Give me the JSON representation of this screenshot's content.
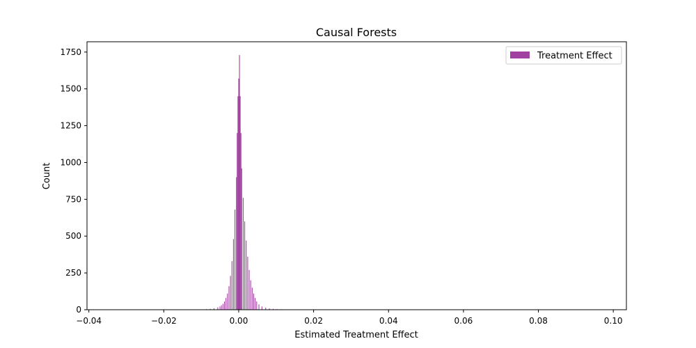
{
  "chart_data": {
    "type": "bar",
    "title": "Causal Forests",
    "xlabel": "Estimated Treatment Effect",
    "ylabel": "Count",
    "xlim": [
      -0.0405,
      0.1035
    ],
    "ylim": [
      0,
      1820
    ],
    "x_ticks": [
      -0.04,
      -0.02,
      0.0,
      0.02,
      0.04,
      0.06,
      0.08,
      0.1
    ],
    "x_tick_labels": [
      "−0.04",
      "−0.02",
      "0.00",
      "0.02",
      "0.04",
      "0.06",
      "0.08",
      "0.10"
    ],
    "y_ticks": [
      0,
      250,
      500,
      750,
      1000,
      1250,
      1500,
      1750
    ],
    "y_tick_labels": [
      "0",
      "250",
      "500",
      "750",
      "1000",
      "1250",
      "1500",
      "1750"
    ],
    "grid": false,
    "legend_position": "top-right",
    "bar_color": "#800080",
    "bin_width": 0.0002,
    "series": [
      {
        "name": "Treatment Effect",
        "bin_starts": [
          -0.0107,
          -0.0087,
          -0.0077,
          -0.0067,
          -0.0057,
          -0.0051,
          -0.0047,
          -0.0043,
          -0.0039,
          -0.0035,
          -0.0031,
          -0.0027,
          -0.0023,
          -0.0019,
          -0.0015,
          -0.0011,
          -0.0007,
          -0.0005,
          -0.0003,
          -0.0001,
          0.0001,
          0.0003,
          0.0005,
          0.0007,
          0.0011,
          0.0015,
          0.0019,
          0.0023,
          0.0027,
          0.0031,
          0.0035,
          0.0039,
          0.0043,
          0.0047,
          0.0053,
          0.0061,
          0.0071,
          0.0081,
          0.0091,
          0.0101,
          0.0111,
          0.0125,
          0.0145,
          0.0165
        ],
        "counts": [
          2,
          4,
          6,
          10,
          16,
          22,
          30,
          40,
          56,
          80,
          110,
          160,
          230,
          330,
          480,
          680,
          900,
          1200,
          1450,
          1570,
          1730,
          1450,
          1200,
          960,
          760,
          600,
          470,
          360,
          270,
          200,
          150,
          110,
          80,
          56,
          36,
          22,
          14,
          9,
          6,
          4,
          3,
          2,
          1,
          1
        ]
      }
    ]
  }
}
